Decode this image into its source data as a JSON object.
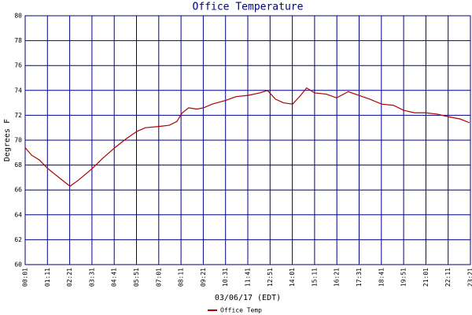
{
  "chart_data": {
    "type": "line",
    "title": "Office Temperature",
    "x_label": "03/06/17 (EDT)",
    "y_label": "Degrees F",
    "x": [
      1,
      21,
      46,
      73,
      107,
      142,
      169,
      211,
      243,
      283,
      318,
      352,
      379,
      421,
      454,
      478,
      495,
      515,
      540,
      562,
      589,
      632,
      664,
      702,
      739,
      763,
      788,
      813,
      842,
      867,
      886,
      911,
      948,
      980,
      1017,
      1050,
      1084,
      1122,
      1159,
      1191,
      1225,
      1260,
      1295,
      1329,
      1369,
      1398
    ],
    "series": [
      {
        "name": "Office Temp",
        "color": "#b00000",
        "values": [
          69.4,
          68.8,
          68.4,
          67.7,
          67.0,
          66.3,
          66.8,
          67.7,
          68.5,
          69.4,
          70.1,
          70.7,
          71.0,
          71.1,
          71.2,
          71.5,
          72.2,
          72.6,
          72.5,
          72.6,
          72.9,
          73.2,
          73.5,
          73.6,
          73.8,
          74.0,
          73.3,
          73.0,
          72.9,
          73.6,
          74.2,
          73.8,
          73.7,
          73.4,
          73.9,
          73.6,
          73.3,
          72.9,
          72.8,
          72.4,
          72.2,
          72.2,
          72.1,
          71.9,
          71.7,
          71.4
        ]
      }
    ],
    "xlim": [
      1,
      1401
    ],
    "xticks": [
      {
        "value": 1,
        "label": "00:01"
      },
      {
        "value": 71,
        "label": "01:11"
      },
      {
        "value": 141,
        "label": "02:21"
      },
      {
        "value": 211,
        "label": "03:31"
      },
      {
        "value": 281,
        "label": "04:41"
      },
      {
        "value": 351,
        "label": "05:51"
      },
      {
        "value": 421,
        "label": "07:01"
      },
      {
        "value": 491,
        "label": "08:11"
      },
      {
        "value": 561,
        "label": "09:21"
      },
      {
        "value": 631,
        "label": "10:31"
      },
      {
        "value": 701,
        "label": "11:41"
      },
      {
        "value": 771,
        "label": "12:51"
      },
      {
        "value": 841,
        "label": "14:01"
      },
      {
        "value": 911,
        "label": "15:11"
      },
      {
        "value": 981,
        "label": "16:21"
      },
      {
        "value": 1051,
        "label": "17:31"
      },
      {
        "value": 1121,
        "label": "18:41"
      },
      {
        "value": 1191,
        "label": "19:51"
      },
      {
        "value": 1261,
        "label": "21:01"
      },
      {
        "value": 1331,
        "label": "22:11"
      },
      {
        "value": 1401,
        "label": "23:21"
      }
    ],
    "ylim": [
      60,
      80
    ],
    "yticks": [
      60,
      62,
      64,
      66,
      68,
      70,
      72,
      74,
      76,
      78,
      80
    ],
    "grid": true
  }
}
